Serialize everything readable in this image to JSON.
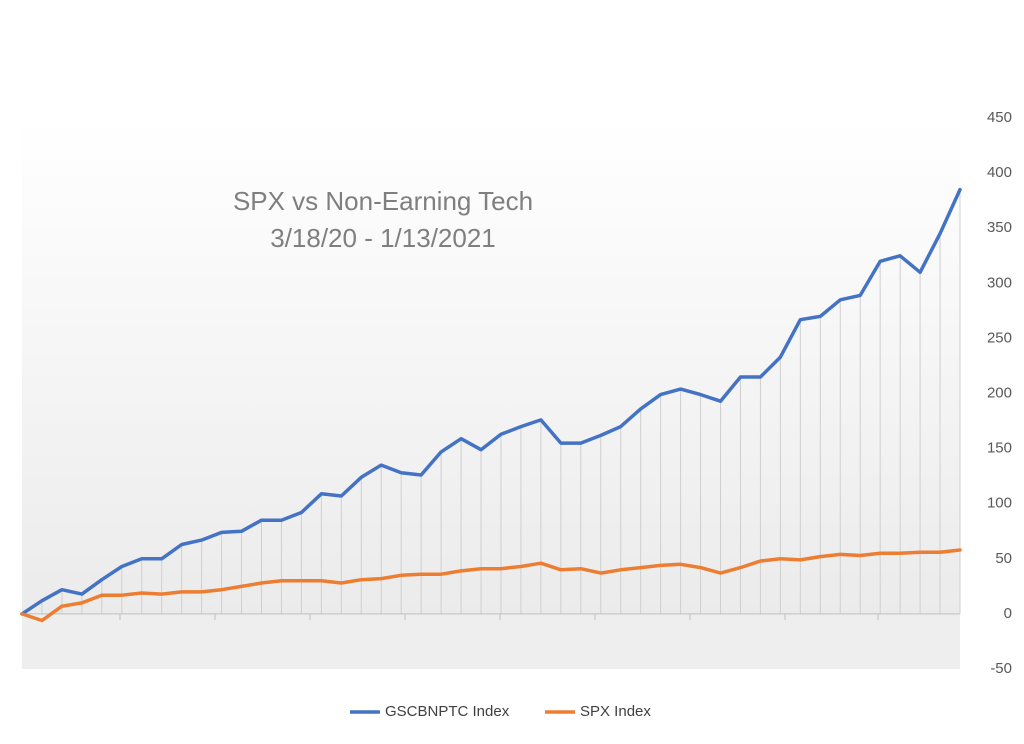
{
  "chart_data": {
    "type": "line",
    "title": "SPX vs Non-Earning Tech",
    "subtitle": "3/18/20 - 1/13/2021",
    "series": [
      {
        "name": "GSCBNPTC Index",
        "color": "#4472c4",
        "values": [
          0,
          12,
          22,
          18,
          31,
          43,
          50,
          50,
          63,
          67,
          74,
          75,
          85,
          85,
          92,
          109,
          107,
          124,
          135,
          128,
          126,
          147,
          159,
          149,
          163,
          170,
          176,
          155,
          155,
          162,
          170,
          186,
          199,
          204,
          199,
          193,
          215,
          215,
          233,
          267,
          270,
          285,
          289,
          320,
          325,
          310,
          345,
          385
        ]
      },
      {
        "name": "SPX Index",
        "color": "#ed7d31",
        "values": [
          0,
          -6,
          7,
          10,
          17,
          17,
          19,
          18,
          20,
          20,
          22,
          25,
          28,
          30,
          30,
          30,
          28,
          31,
          32,
          35,
          36,
          36,
          39,
          41,
          41,
          43,
          46,
          40,
          41,
          37,
          40,
          42,
          44,
          45,
          42,
          37,
          42,
          48,
          50,
          49,
          52,
          54,
          53,
          55,
          55,
          56,
          56,
          58
        ]
      }
    ],
    "ylim": [
      -50,
      450
    ],
    "yticks": [
      -50,
      0,
      50,
      100,
      150,
      200,
      250,
      300,
      350,
      400,
      450
    ],
    "y_axis_side": "right",
    "drop_lines": true,
    "grid": false,
    "legend": "bottom"
  }
}
